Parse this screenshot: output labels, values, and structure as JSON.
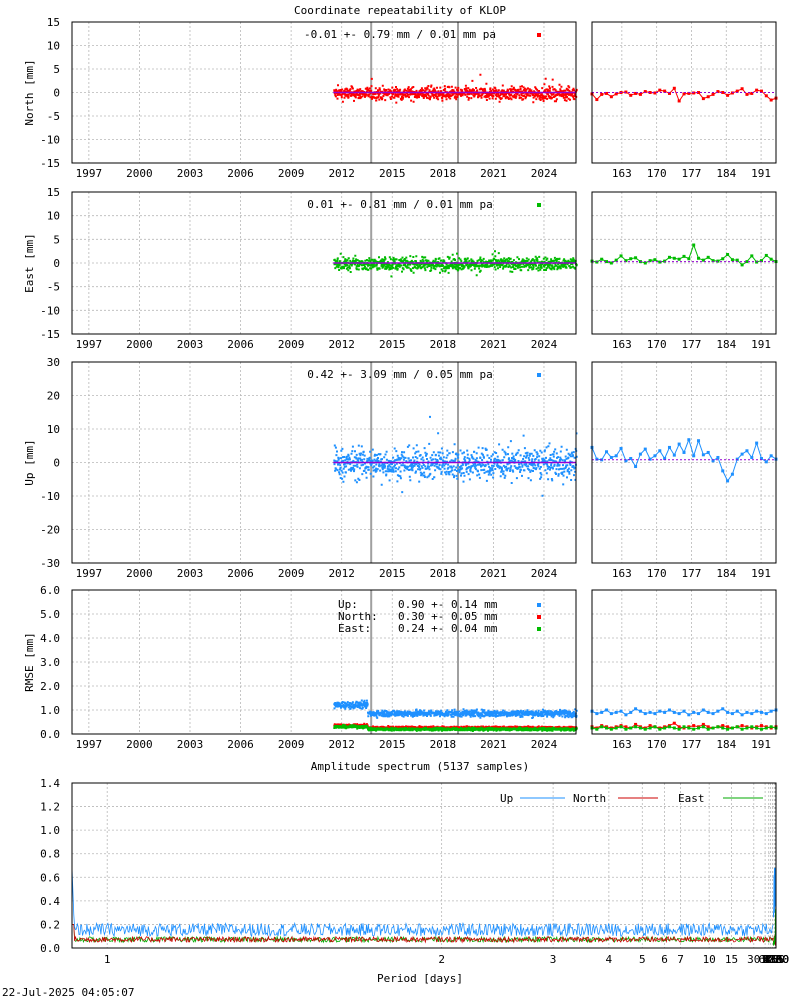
{
  "title": "Coordinate repeatability of KLOP",
  "timestamp": "22-Jul-2025 04:05:07",
  "colors": {
    "up": "#1e90ff",
    "north": "#ff0000",
    "east": "#00bb00",
    "trend": "#9400d3",
    "event_line": "#a0a0a0"
  },
  "chart_data": [
    {
      "type": "scatter",
      "name": "north",
      "ylabel": "North [mm]",
      "ylim": [
        -15,
        15
      ],
      "yticks": [
        -15,
        -10,
        -5,
        0,
        5,
        10,
        15
      ],
      "xlim": [
        1996.0,
        2025.9
      ],
      "xticks": [
        1997,
        2000,
        2003,
        2006,
        2009,
        2012,
        2015,
        2018,
        2021,
        2024
      ],
      "data_range": [
        2011.5,
        2025.9
      ],
      "spread": 1.2,
      "event_lines": [
        2013.75,
        2018.9
      ],
      "annotation": "-0.01 +- 0.79 mm /  0.01 mm pa",
      "color": "#ff0000",
      "recent_xticks": [
        163,
        170,
        177,
        184,
        191
      ],
      "recent_xlim": [
        157,
        194
      ],
      "recent_values": [
        -0.3,
        -1.5,
        -0.4,
        -0.2,
        -0.9,
        -0.3,
        0.0,
        0.1,
        -0.6,
        -0.2,
        -0.4,
        0.2,
        0.0,
        -0.1,
        0.5,
        0.3,
        -0.2,
        0.9,
        -1.8,
        -0.3,
        -0.2,
        -0.1,
        0.0,
        -1.3,
        -0.9,
        -0.4,
        0.2,
        0.0,
        -0.6,
        -0.1,
        0.3,
        0.8,
        -0.4,
        -0.2,
        0.5,
        0.3,
        -0.7,
        -1.6,
        -1.2
      ],
      "recent_trend": 0.0
    },
    {
      "type": "scatter",
      "name": "east",
      "ylabel": "East [mm]",
      "ylim": [
        -15,
        15
      ],
      "yticks": [
        -15,
        -10,
        -5,
        0,
        5,
        10,
        15
      ],
      "xlim": [
        1996.0,
        2025.9
      ],
      "xticks": [
        1997,
        2000,
        2003,
        2006,
        2009,
        2012,
        2015,
        2018,
        2021,
        2024
      ],
      "data_range": [
        2011.5,
        2025.9
      ],
      "spread": 1.2,
      "event_lines": [
        2013.75,
        2018.9
      ],
      "annotation": " 0.01 +- 0.81 mm /  0.01 mm pa",
      "color": "#00bb00",
      "recent_xticks": [
        163,
        170,
        177,
        184,
        191
      ],
      "recent_xlim": [
        157,
        194
      ],
      "recent_values": [
        0.4,
        0.2,
        0.8,
        0.3,
        0.0,
        0.6,
        1.5,
        0.5,
        0.9,
        1.1,
        0.3,
        0.0,
        0.5,
        0.7,
        0.2,
        0.4,
        1.2,
        1.0,
        0.8,
        1.4,
        0.9,
        3.8,
        1.0,
        0.6,
        1.2,
        0.5,
        0.4,
        0.9,
        1.8,
        0.7,
        0.6,
        -0.4,
        0.3,
        1.5,
        0.2,
        0.5,
        1.6,
        0.8,
        0.3
      ],
      "recent_trend": 0.3
    },
    {
      "type": "scatter",
      "name": "up",
      "ylabel": "Up [mm]",
      "ylim": [
        -30,
        30
      ],
      "yticks": [
        -30,
        -20,
        -10,
        0,
        10,
        20,
        30
      ],
      "xlim": [
        1996.0,
        2025.9
      ],
      "xticks": [
        1997,
        2000,
        2003,
        2006,
        2009,
        2012,
        2015,
        2018,
        2021,
        2024
      ],
      "data_range": [
        2011.5,
        2025.9
      ],
      "spread": 4.0,
      "event_lines": [
        2013.75,
        2018.9
      ],
      "annotation": " 0.42 +- 3.09 mm /  0.05 mm pa",
      "color": "#1e90ff",
      "recent_xticks": [
        163,
        170,
        177,
        184,
        191
      ],
      "recent_xlim": [
        157,
        194
      ],
      "recent_values": [
        4.5,
        1.0,
        0.8,
        3.2,
        1.5,
        2.0,
        4.2,
        0.5,
        1.2,
        -1.2,
        2.5,
        4.0,
        1.0,
        2.0,
        3.5,
        1.2,
        4.5,
        2.2,
        5.5,
        3.0,
        6.8,
        2.0,
        6.5,
        2.3,
        3.0,
        0.5,
        1.5,
        -2.5,
        -5.5,
        -3.5,
        1.0,
        2.5,
        3.5,
        1.5,
        5.8,
        1.2,
        0.2,
        2.0,
        1.0
      ],
      "recent_trend": 0.8
    },
    {
      "type": "scatter",
      "name": "rmse",
      "ylabel": "RMSE [mm]",
      "ylim": [
        0,
        6
      ],
      "yticks": [
        "0.0",
        "1.0",
        "2.0",
        "3.0",
        "4.0",
        "5.0",
        "6.0"
      ],
      "xlim": [
        1996.0,
        2025.9
      ],
      "xticks": [
        1997,
        2000,
        2003,
        2006,
        2009,
        2012,
        2015,
        2018,
        2021,
        2024
      ],
      "data_range": [
        2011.5,
        2025.9
      ],
      "event_lines": [
        2013.75,
        2018.9
      ],
      "legend": [
        {
          "label": "Up:",
          "value": " 0.90 +- 0.14 mm",
          "color": "#1e90ff"
        },
        {
          "label": "North:",
          "value": "0.30 +- 0.05 mm",
          "color": "#ff0000"
        },
        {
          "label": "East:",
          "value": " 0.24 +- 0.04 mm",
          "color": "#00bb00"
        }
      ],
      "series_levels": {
        "up": 0.9,
        "north": 0.3,
        "east": 0.24
      },
      "recent_xticks": [
        163,
        170,
        177,
        184,
        191
      ],
      "recent_xlim": [
        157,
        194
      ],
      "recent_up": [
        0.95,
        0.85,
        0.9,
        1.0,
        0.85,
        0.9,
        0.95,
        0.8,
        0.9,
        1.05,
        0.95,
        0.85,
        0.9,
        0.85,
        0.95,
        0.9,
        1.0,
        0.9,
        0.85,
        0.95,
        0.8,
        0.9,
        0.85,
        1.0,
        0.9,
        0.85,
        0.95,
        1.05,
        0.9,
        0.85,
        0.95,
        0.8,
        0.9,
        0.85,
        0.95,
        0.9,
        0.85,
        0.95,
        1.0
      ],
      "recent_north": [
        0.3,
        0.25,
        0.35,
        0.3,
        0.25,
        0.3,
        0.35,
        0.3,
        0.25,
        0.4,
        0.3,
        0.25,
        0.35,
        0.3,
        0.25,
        0.3,
        0.35,
        0.45,
        0.3,
        0.25,
        0.3,
        0.35,
        0.3,
        0.4,
        0.3,
        0.25,
        0.3,
        0.35,
        0.3,
        0.25,
        0.3,
        0.35,
        0.3,
        0.25,
        0.3,
        0.35,
        0.3,
        0.25,
        0.3
      ],
      "recent_east": [
        0.25,
        0.2,
        0.3,
        0.25,
        0.2,
        0.25,
        0.3,
        0.2,
        0.25,
        0.3,
        0.25,
        0.2,
        0.25,
        0.3,
        0.2,
        0.25,
        0.3,
        0.25,
        0.2,
        0.3,
        0.25,
        0.2,
        0.25,
        0.3,
        0.2,
        0.25,
        0.3,
        0.25,
        0.2,
        0.25,
        0.3,
        0.2,
        0.25,
        0.3,
        0.25,
        0.2,
        0.25,
        0.3,
        0.25
      ]
    },
    {
      "type": "line",
      "name": "spectrum",
      "title": "Amplitude spectrum (5137 samples)",
      "xlabel": "Period [days]",
      "xscale": "log-reciprocal",
      "xlim_days": [
        0.95,
        8760
      ],
      "xticks": [
        1,
        2,
        3,
        4,
        5,
        6,
        7,
        10,
        15,
        30,
        61,
        91,
        122,
        183,
        365,
        730,
        2190,
        4380,
        8760
      ],
      "ylim": [
        0,
        1.4
      ],
      "yticks": [
        "0.0",
        "0.2",
        "0.4",
        "0.6",
        "0.8",
        "1.0",
        "1.2",
        "1.4"
      ],
      "legend": [
        "Up",
        "North",
        "East"
      ],
      "series": [
        {
          "name": "Up",
          "color": "#1e90ff",
          "period": [
            5137,
            2568,
            1712,
            1284,
            1027,
            856,
            734,
            642,
            571,
            514,
            467,
            428,
            395,
            367,
            342,
            321,
            302,
            285,
            270,
            257
          ],
          "values": [
            0.38,
            0.4,
            0.67,
            0.5,
            0.35,
            0.45,
            0.38,
            0.68,
            0.45,
            0.62,
            0.35,
            0.68,
            0.3,
            0.48,
            0.62,
            0.55,
            0.38,
            0.3,
            0.26,
            0.3
          ]
        },
        {
          "name": "North",
          "color": "#cc0000",
          "period": [
            5137,
            2568,
            1712,
            1284,
            1027,
            856,
            734,
            642,
            571,
            514,
            467,
            428,
            395,
            367,
            342,
            321,
            302,
            285,
            270,
            257
          ],
          "values": [
            0.18,
            0.15,
            0.12,
            0.02,
            0.05,
            0.1,
            0.12,
            0.08,
            0.05,
            0.1,
            0.05,
            0.08,
            0.04,
            0.1,
            0.06,
            0.04,
            0.08,
            0.05,
            0.03,
            0.06
          ]
        },
        {
          "name": "East",
          "color": "#00aa00",
          "period": [
            5137,
            2568,
            1712,
            1284,
            1027,
            856,
            734,
            642,
            571,
            514,
            467,
            428,
            395,
            367,
            342,
            321,
            302,
            285,
            270,
            257
          ],
          "values": [
            0.26,
            0.22,
            0.15,
            0.33,
            0.22,
            0.1,
            0.08,
            0.1,
            0.06,
            0.05,
            0.1,
            0.03,
            0.06,
            0.08,
            0.03,
            0.05,
            0.04,
            0.06,
            0.02,
            0.05
          ]
        }
      ],
      "short_period_level": 0.12
    }
  ]
}
